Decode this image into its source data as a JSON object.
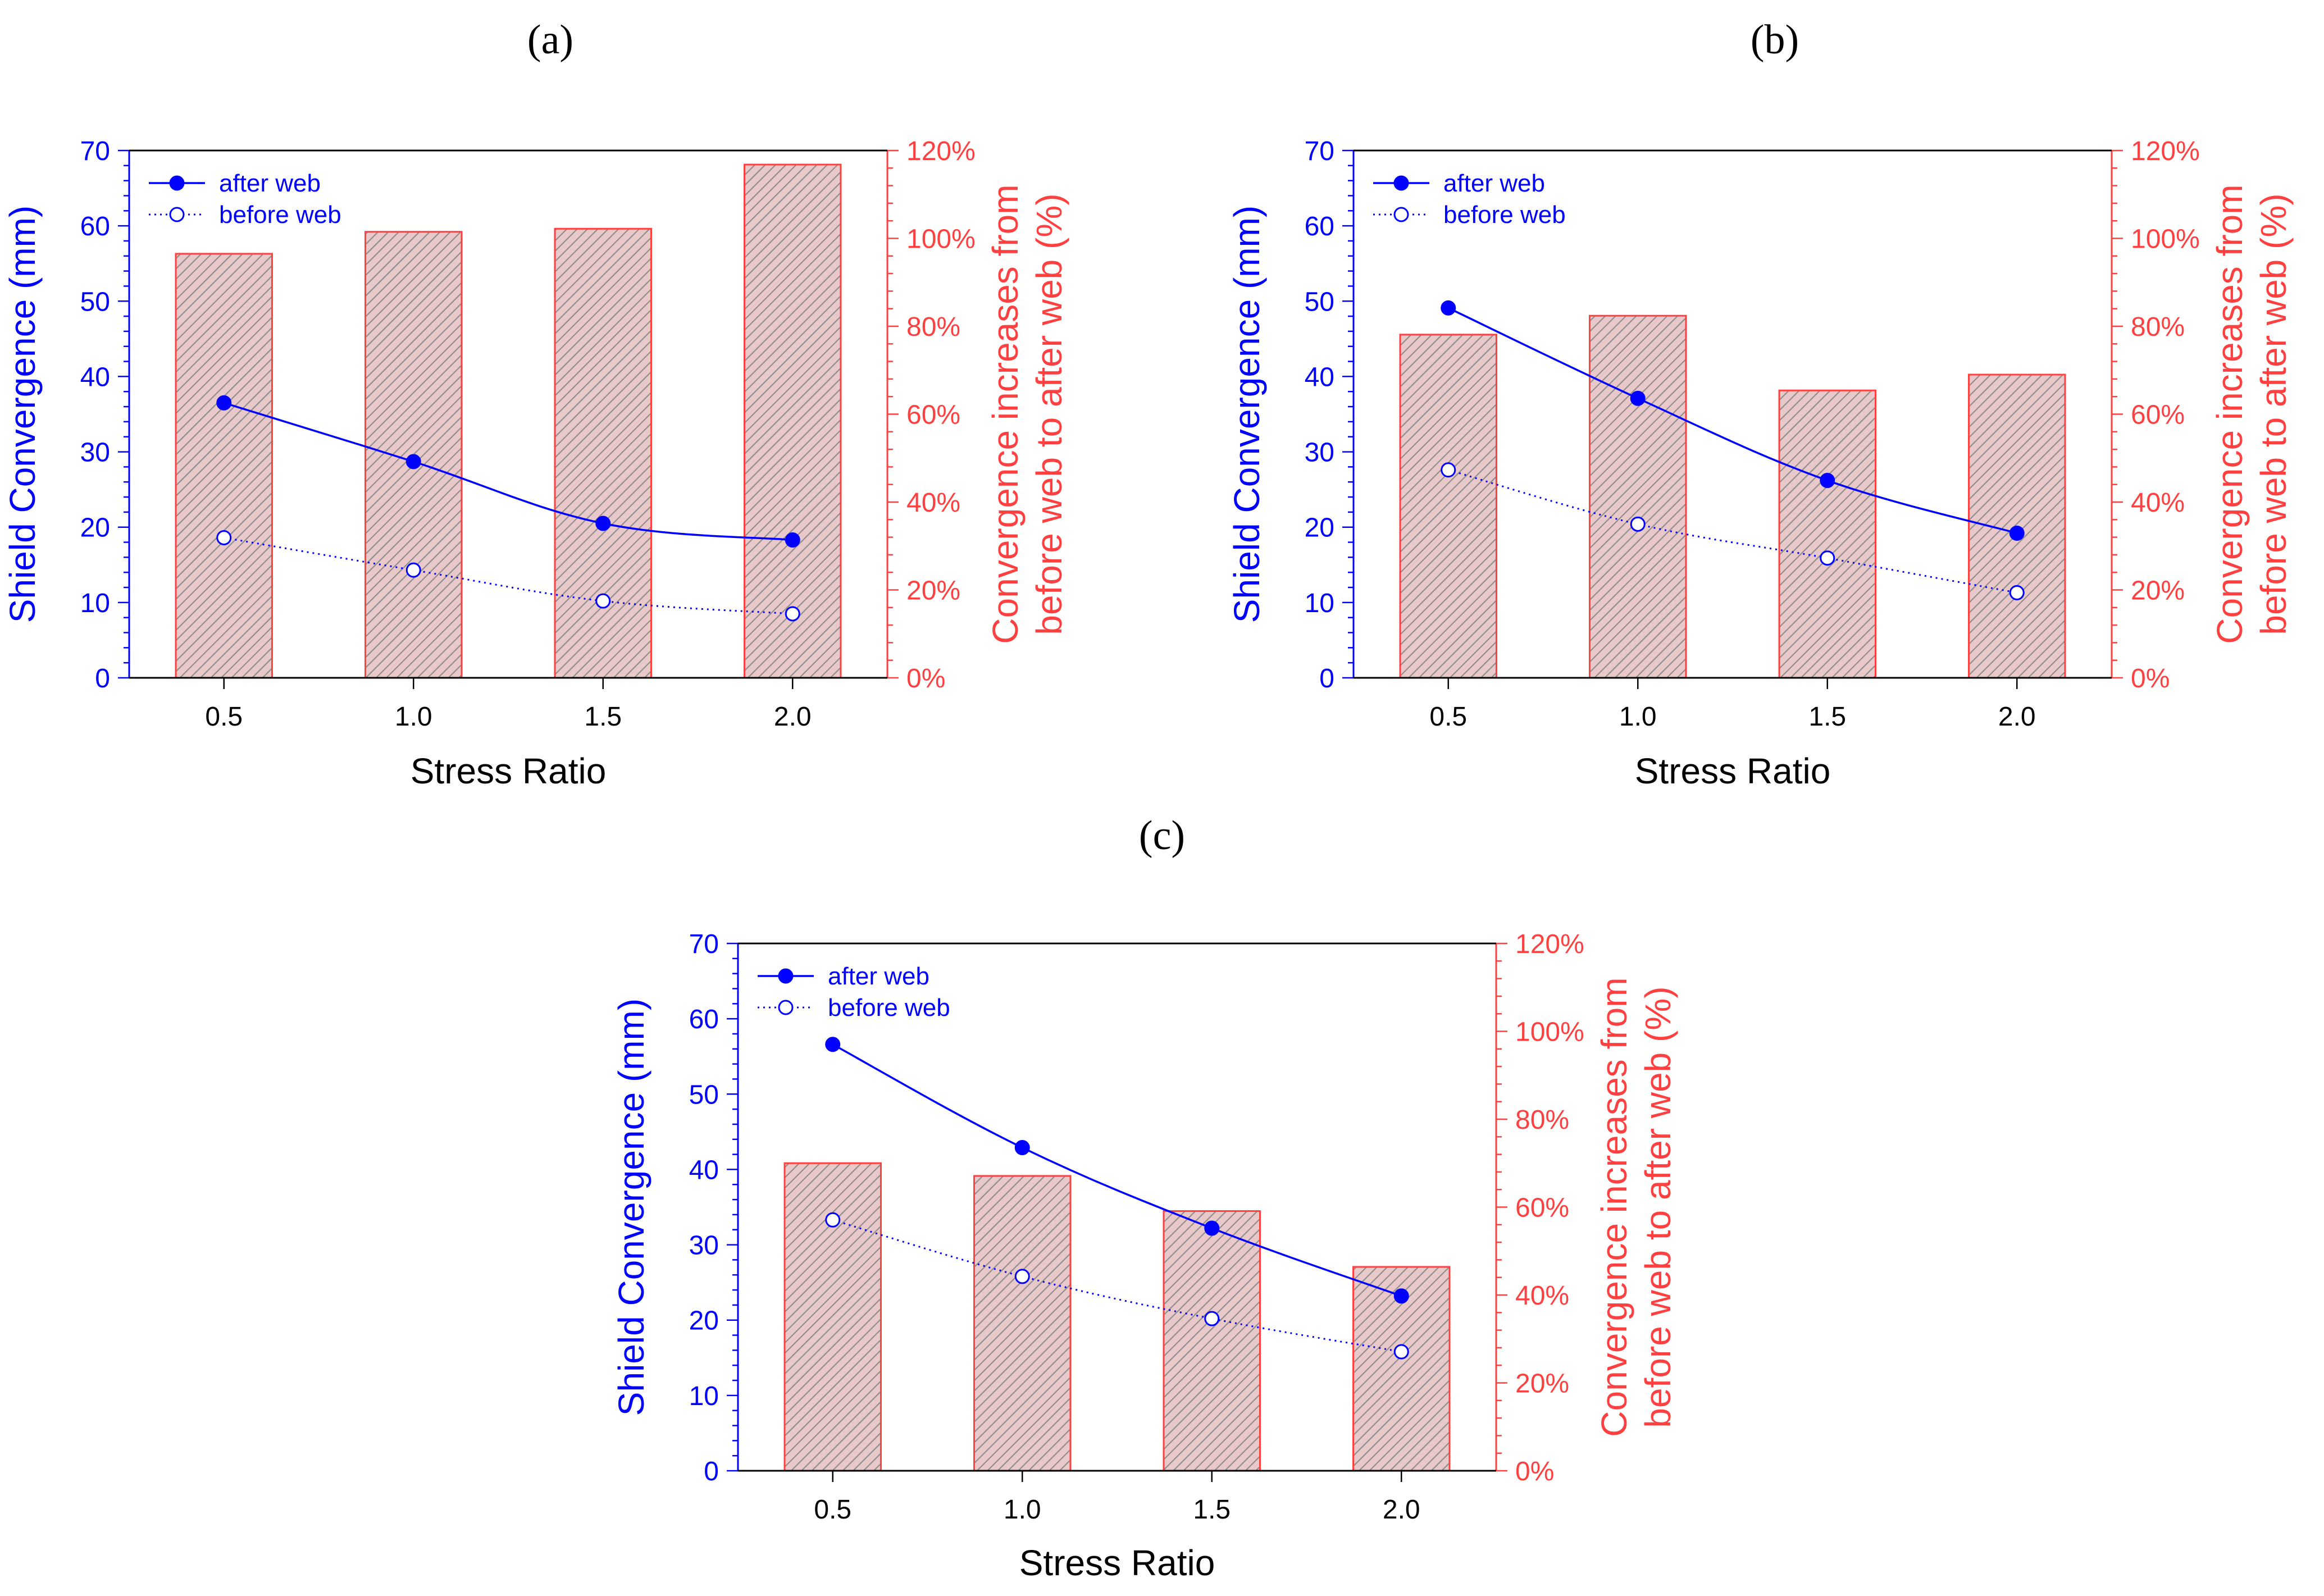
{
  "chart_data": [
    {
      "panel": "(a)",
      "type": "bar+line",
      "title": "",
      "xlabel": "Stress Ratio",
      "ylabel_left": "Shield Convergence (mm)",
      "ylabel_right_lines": [
        "Convergence increases from",
        "before web to after web (%)"
      ],
      "categories": [
        "0.5",
        "1.0",
        "1.5",
        "2.0"
      ],
      "ylim_left": [
        0,
        70
      ],
      "ylim_right": [
        0,
        120
      ],
      "yticks_left": [
        "0",
        "10",
        "20",
        "30",
        "40",
        "50",
        "60",
        "70"
      ],
      "yticks_right": [
        "0%",
        "20%",
        "40%",
        "60%",
        "80%",
        "100%",
        "120%"
      ],
      "legend_position": "top-left",
      "bars": {
        "values": [
          96.5,
          101.5,
          102.2,
          116.8
        ],
        "color": "#ff4040",
        "hatch": "diagonal"
      },
      "series": [
        {
          "name": "after web",
          "values": [
            36.5,
            28.7,
            20.5,
            18.3
          ],
          "color": "#0000ff",
          "marker": "filled-circle",
          "line": "solid"
        },
        {
          "name": "before web",
          "values": [
            18.6,
            14.3,
            10.2,
            8.5
          ],
          "color": "#0000ff",
          "marker": "open-circle",
          "line": "dotted"
        }
      ]
    },
    {
      "panel": "(b)",
      "type": "bar+line",
      "title": "",
      "xlabel": "Stress Ratio",
      "ylabel_left": "Shield Convergence (mm)",
      "ylabel_right_lines": [
        "Convergence increases from",
        "before web to after web (%)"
      ],
      "categories": [
        "0.5",
        "1.0",
        "1.5",
        "2.0"
      ],
      "ylim_left": [
        0,
        70
      ],
      "ylim_right": [
        0,
        120
      ],
      "yticks_left": [
        "0",
        "10",
        "20",
        "30",
        "40",
        "50",
        "60",
        "70"
      ],
      "yticks_right": [
        "0%",
        "20%",
        "40%",
        "60%",
        "80%",
        "100%",
        "120%"
      ],
      "legend_position": "top-left",
      "bars": {
        "values": [
          78.1,
          82.4,
          65.4,
          69.0
        ],
        "color": "#ff4040",
        "hatch": "diagonal"
      },
      "series": [
        {
          "name": "after web",
          "values": [
            49.1,
            37.1,
            26.2,
            19.2
          ],
          "color": "#0000ff",
          "marker": "filled-circle",
          "line": "solid"
        },
        {
          "name": "before web",
          "values": [
            27.6,
            20.4,
            15.9,
            11.3
          ],
          "color": "#0000ff",
          "marker": "open-circle",
          "line": "dotted"
        }
      ]
    },
    {
      "panel": "(c)",
      "type": "bar+line",
      "title": "",
      "xlabel": "Stress Ratio",
      "ylabel_left": "Shield Convergence (mm)",
      "ylabel_right_lines": [
        "Convergence increases from",
        "before web to after web (%)"
      ],
      "categories": [
        "0.5",
        "1.0",
        "1.5",
        "2.0"
      ],
      "ylim_left": [
        0,
        70
      ],
      "ylim_right": [
        0,
        120
      ],
      "yticks_left": [
        "0",
        "10",
        "20",
        "30",
        "40",
        "50",
        "60",
        "70"
      ],
      "yticks_right": [
        "0%",
        "20%",
        "40%",
        "60%",
        "80%",
        "100%",
        "120%"
      ],
      "legend_position": "top-left",
      "bars": {
        "values": [
          70.0,
          67.1,
          59.1,
          46.4
        ],
        "color": "#ff4040",
        "hatch": "diagonal"
      },
      "series": [
        {
          "name": "after web",
          "values": [
            56.6,
            42.9,
            32.2,
            23.2
          ],
          "color": "#0000ff",
          "marker": "filled-circle",
          "line": "solid"
        },
        {
          "name": "before web",
          "values": [
            33.3,
            25.8,
            20.2,
            15.8
          ],
          "color": "#0000ff",
          "marker": "open-circle",
          "line": "dotted"
        }
      ]
    }
  ]
}
